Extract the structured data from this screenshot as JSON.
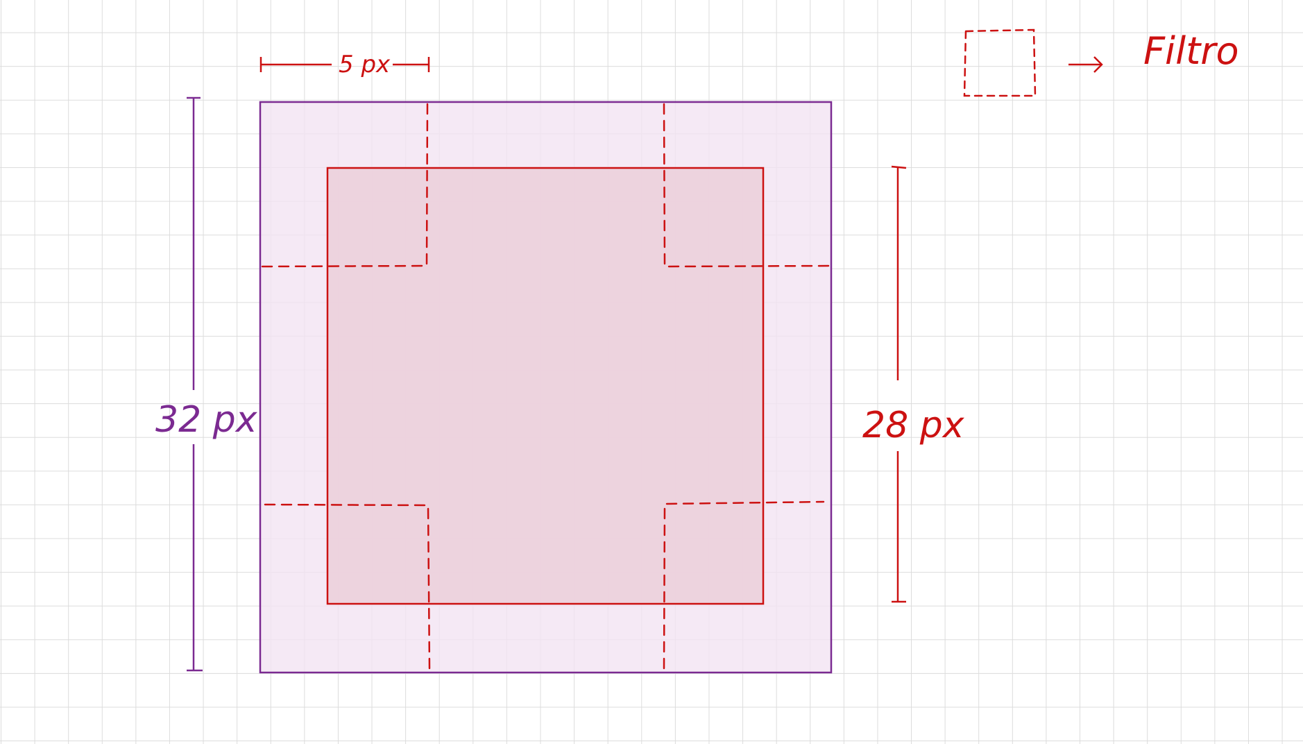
{
  "labels": {
    "outer_size": "32 px",
    "inner_size": "28 px",
    "stride": "5 px",
    "legend": "Filtro"
  },
  "colors": {
    "outer": "#7b2a91",
    "outer_fill": "#f2e4f2",
    "inner": "#cc1111",
    "inner_fill": "#ecd0db",
    "grid": "#dcdcdc"
  }
}
